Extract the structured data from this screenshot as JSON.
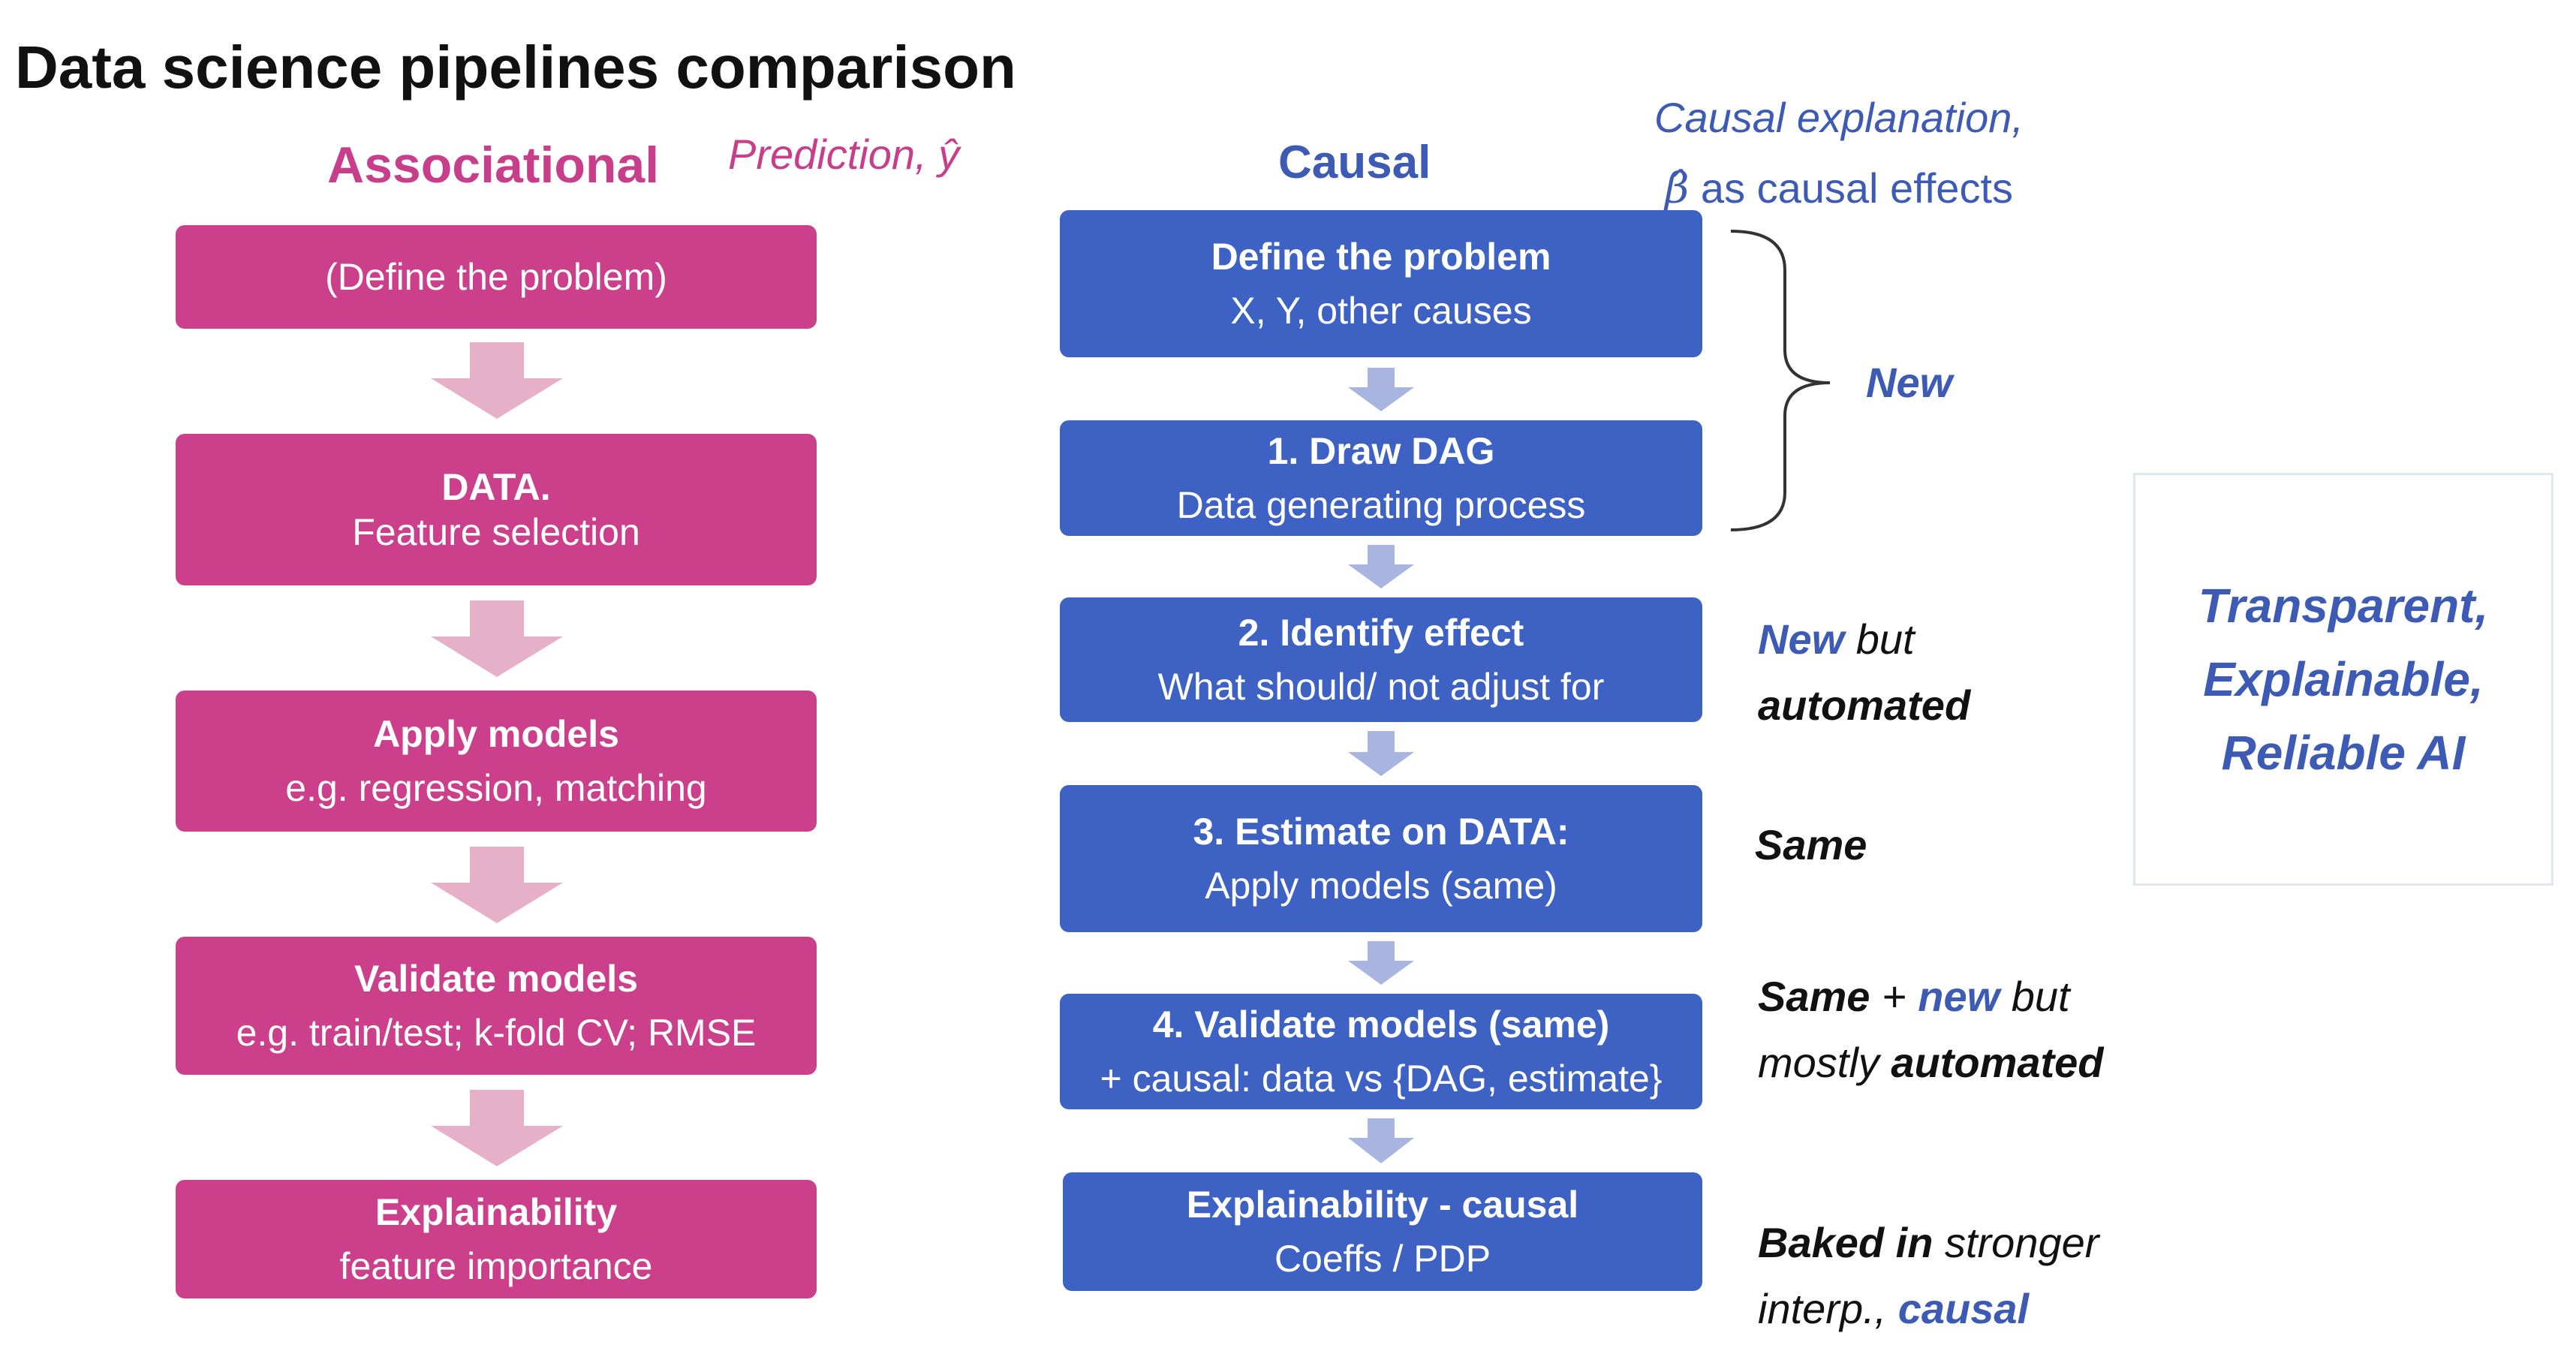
{
  "title": "Data science pipelines comparison",
  "associational": {
    "header": "Associational",
    "prediction_label": "Prediction,  ŷ",
    "steps": [
      {
        "head": "",
        "body": "(Define the problem)"
      },
      {
        "head": "DATA.",
        "body": "Feature selection"
      },
      {
        "head": "Apply models",
        "body": "e.g. regression, matching"
      },
      {
        "head": "Validate models",
        "body": "e.g. train/test; k-fold CV; RMSE"
      },
      {
        "head": "Explainability",
        "body": "feature importance"
      }
    ]
  },
  "causal": {
    "header": "Causal",
    "explanation_line1": "Causal explanation,",
    "explanation_beta": "β̂",
    "explanation_line2_rest": " as causal effects",
    "steps": [
      {
        "head": "Define the problem",
        "body": "X, Y, other causes"
      },
      {
        "head": "1. Draw DAG",
        "body": "Data generating process"
      },
      {
        "head": "2. Identify effect",
        "body": "What should/ not adjust for"
      },
      {
        "head": "3. Estimate on DATA:",
        "body": "Apply models (same)"
      },
      {
        "head": "4. Validate models (same)",
        "body": "+ causal: data vs {DAG, estimate}"
      },
      {
        "head": "Explainability - causal",
        "body": "Coeffs / PDP"
      }
    ]
  },
  "notes": {
    "new": "New",
    "identify": {
      "new": "New",
      "but": " but",
      "automated": "automated"
    },
    "estimate": "Same",
    "validate": {
      "same": "Same",
      "plus": " + ",
      "new": "new",
      "but": " but",
      "mostly": "mostly ",
      "automated": "automated"
    },
    "explain": {
      "baked": "Baked in",
      "stronger": " stronger",
      "interp": "interp., ",
      "causal": "causal"
    }
  },
  "panel": {
    "text": "Transparent, Explainable, Reliable AI"
  },
  "colors": {
    "associational": "#cc3f8a",
    "associational_arrow": "#e6b1c8",
    "causal": "#3e62c4",
    "causal_arrow": "#a7b5e0",
    "brace": "#333333"
  }
}
